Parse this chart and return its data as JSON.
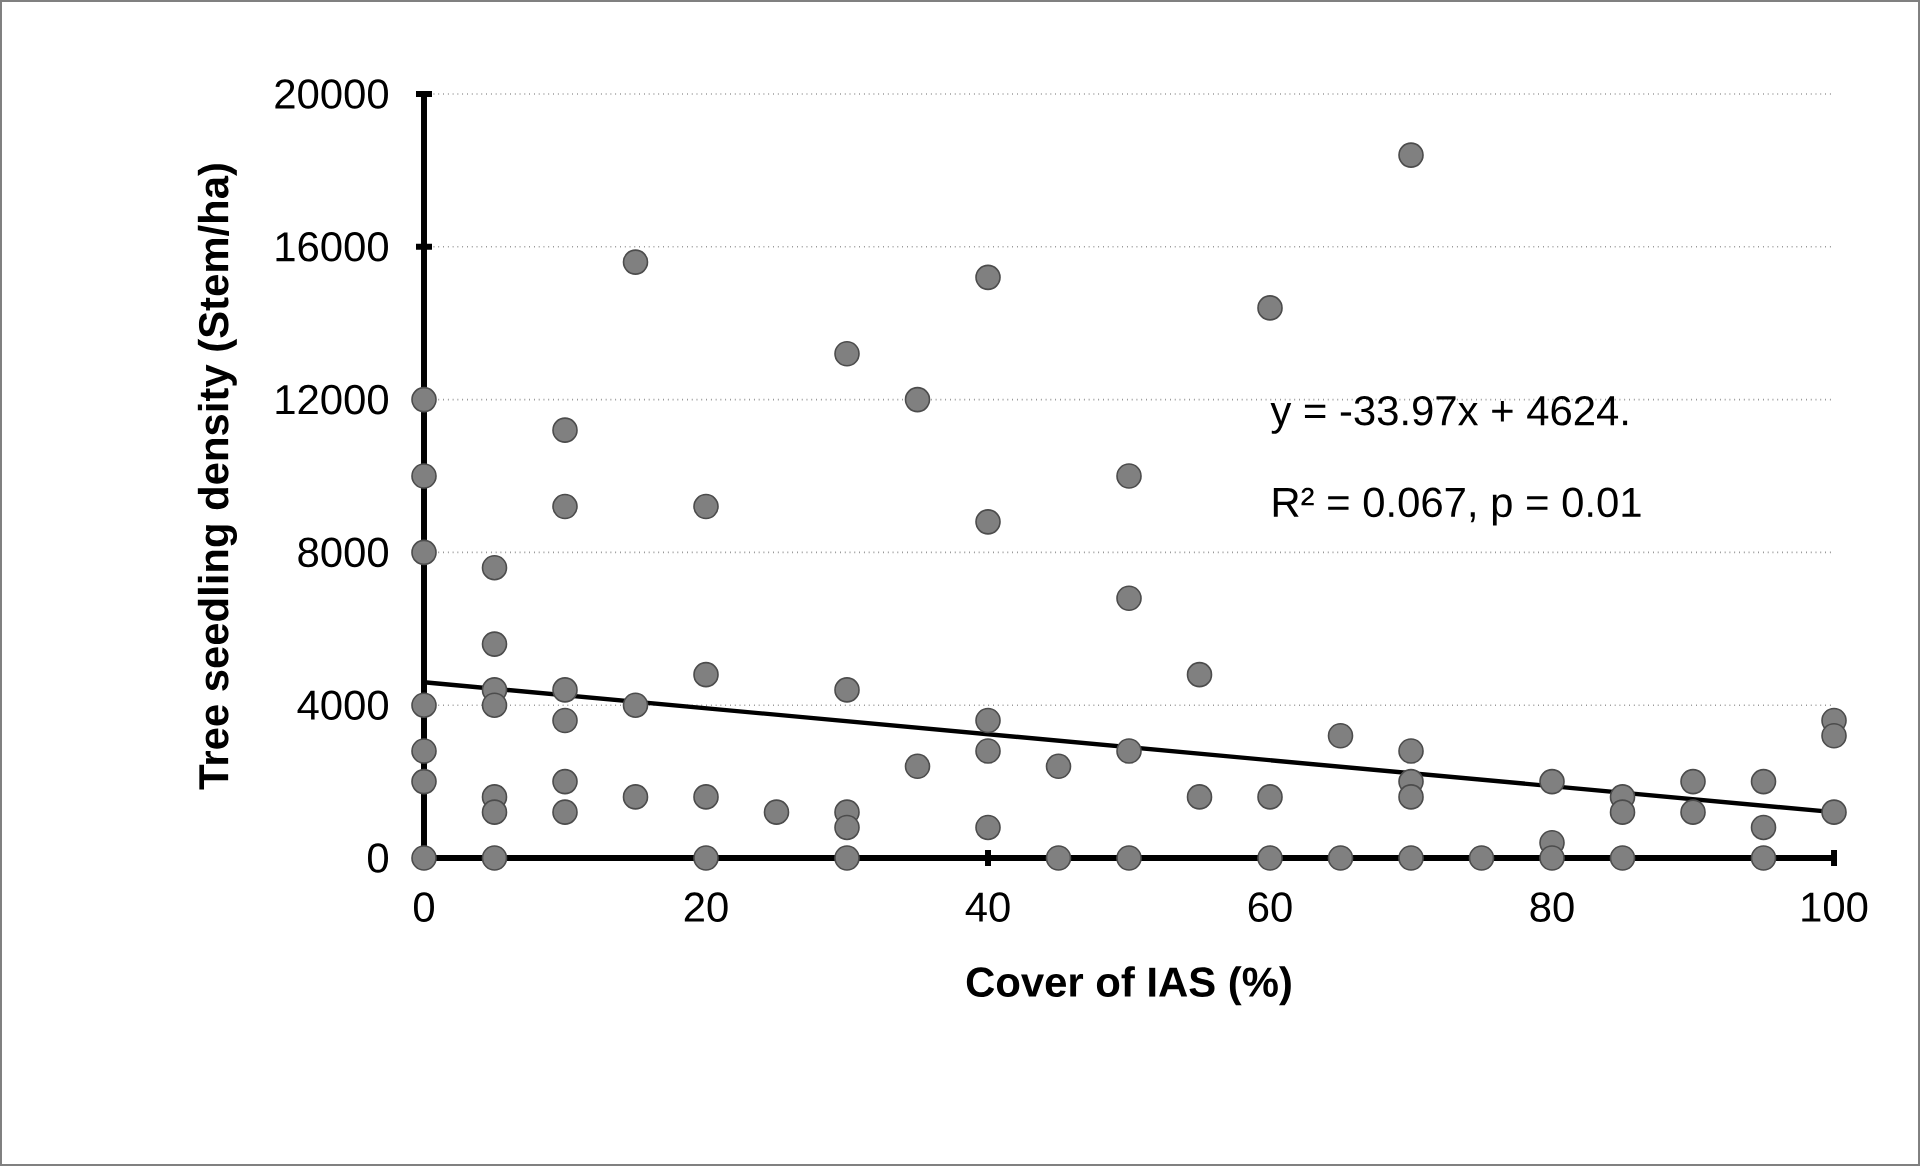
{
  "chart_data": {
    "type": "scatter",
    "xlabel": "Cover of IAS (%)",
    "ylabel": "Tree seedling density (Stem/ha)",
    "xlim": [
      0,
      100
    ],
    "xticks": [
      0,
      20,
      40,
      60,
      80,
      100
    ],
    "ylim": [
      0,
      20000
    ],
    "yticks": [
      0,
      4000,
      8000,
      12000,
      16000,
      20000
    ],
    "grid": "y",
    "annotations": [
      "y = -33.97x + 4624.",
      "R² = 0.067, p = 0.01"
    ],
    "series": [
      {
        "color": "#808080",
        "marker": "circle",
        "x": [
          0,
          0,
          0,
          0,
          0,
          0,
          0,
          5,
          5,
          5,
          5,
          5,
          5,
          5,
          10,
          10,
          10,
          10,
          10,
          10,
          15,
          15,
          15,
          20,
          20,
          20,
          20,
          25,
          30,
          30,
          30,
          30,
          30,
          35,
          35,
          40,
          40,
          40,
          40,
          40,
          45,
          45,
          50,
          50,
          50,
          50,
          55,
          55,
          60,
          60,
          60,
          65,
          65,
          70,
          70,
          70,
          70,
          70,
          75,
          80,
          80,
          80,
          85,
          85,
          85,
          90,
          90,
          95,
          95,
          95,
          100,
          100,
          100
        ],
        "values": [
          12000,
          10000,
          8000,
          4000,
          2800,
          2000,
          0,
          7600,
          5600,
          4400,
          4000,
          1600,
          1200,
          0,
          11200,
          9200,
          4400,
          3600,
          2000,
          1200,
          15600,
          4000,
          1600,
          9200,
          4800,
          1600,
          0,
          1200,
          13200,
          4400,
          1200,
          800,
          0,
          12000,
          2400,
          15200,
          8800,
          3600,
          2800,
          800,
          2400,
          0,
          10000,
          6800,
          2800,
          0,
          4800,
          1600,
          14400,
          1600,
          0,
          3200,
          0,
          18400,
          2800,
          2000,
          1600,
          0,
          0,
          2000,
          400,
          0,
          1600,
          1200,
          0,
          2000,
          1200,
          2000,
          800,
          0,
          3600,
          3200,
          1200
        ]
      },
      {
        "type": "line",
        "color": "#000000",
        "marker": "none",
        "x": [
          0,
          100
        ],
        "values": [
          4600,
          1200
        ]
      }
    ]
  }
}
